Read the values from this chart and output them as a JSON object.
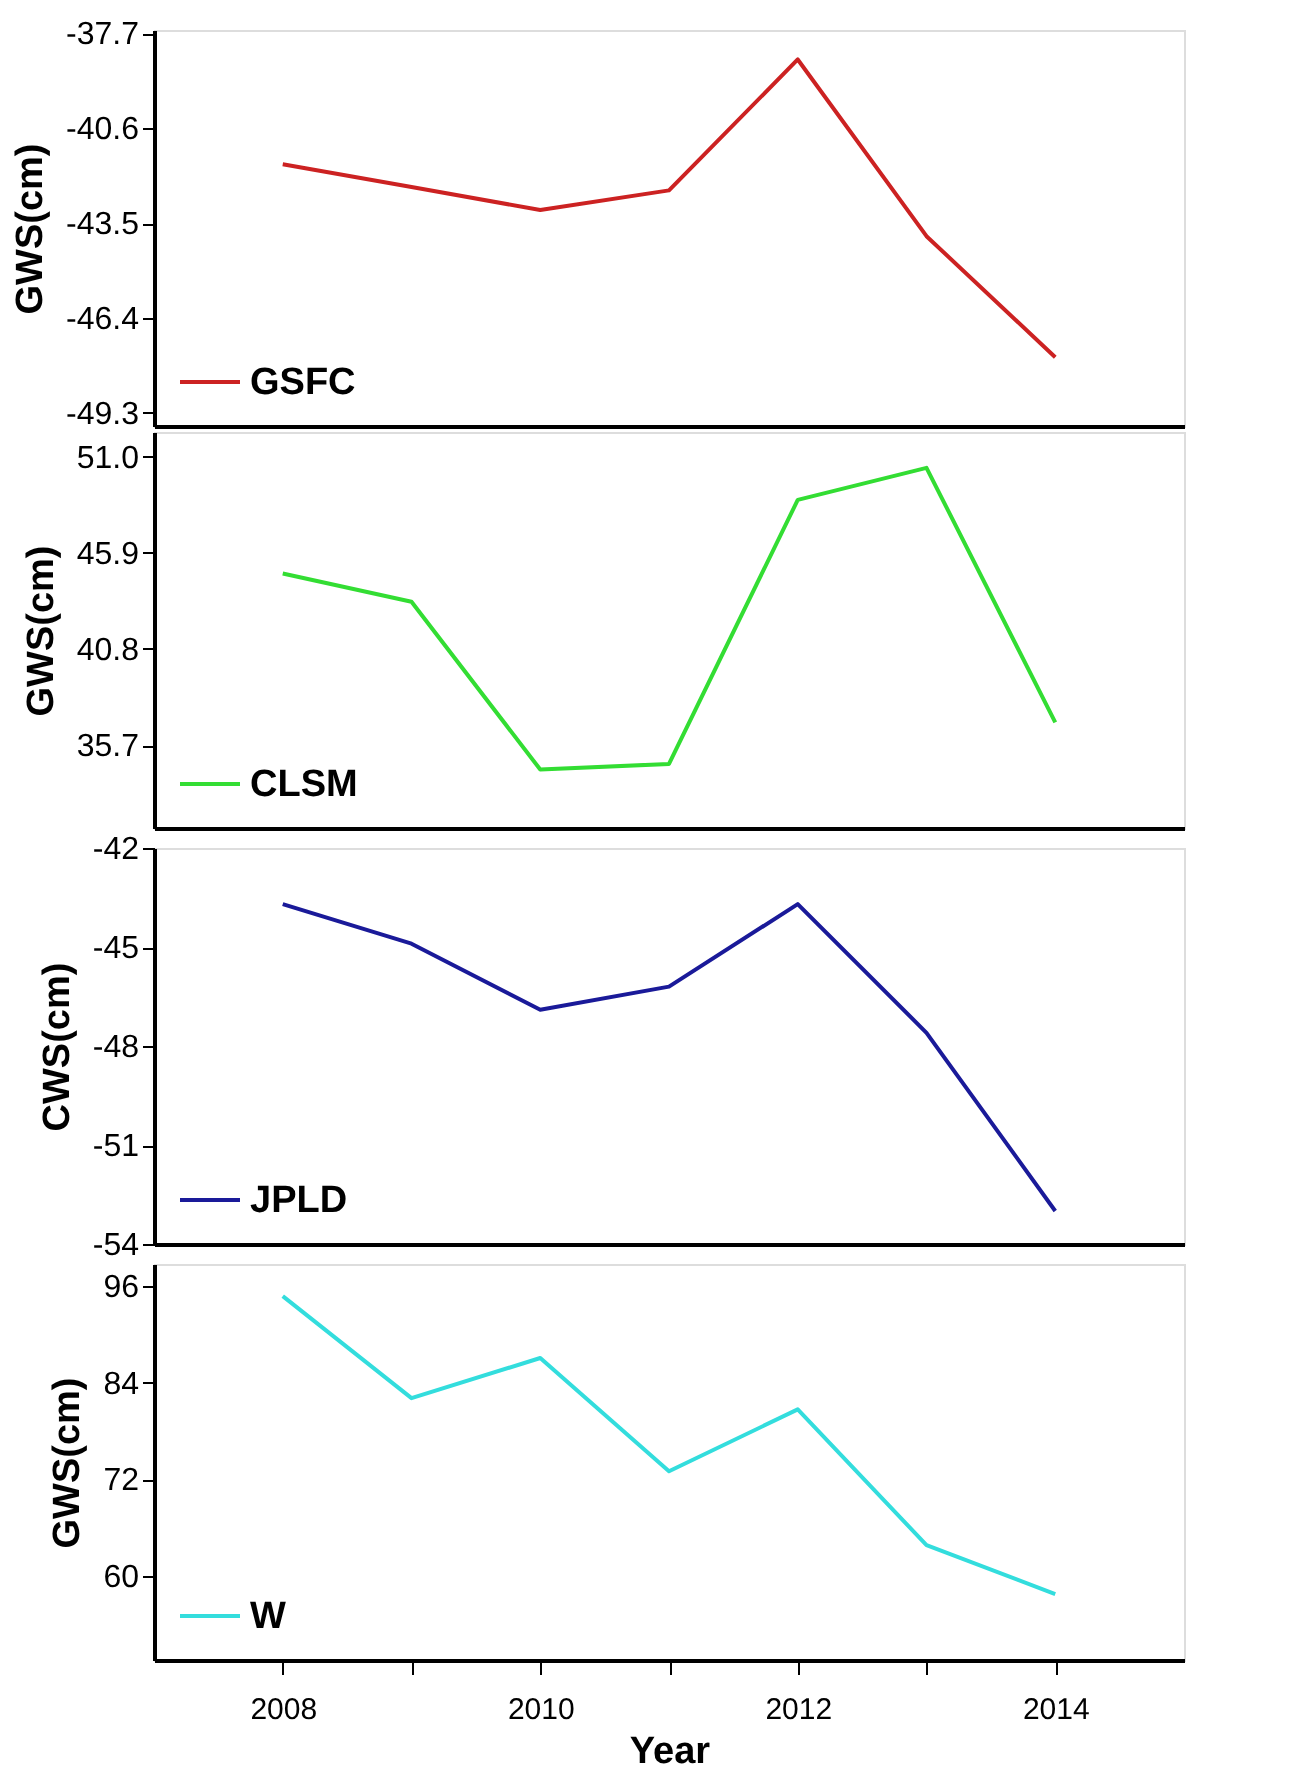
{
  "chart_data": [
    {
      "type": "line",
      "x": [
        2008,
        2009,
        2010,
        2011,
        2012,
        2013,
        2014
      ],
      "ylabel": "GWS(cm)",
      "legend": "bottom left",
      "tick_labels": "y",
      "grid": false,
      "xlim": [
        2007,
        2015
      ],
      "ylim": [
        -49.7,
        -37.6
      ],
      "yticks": [
        -37.7,
        -40.6,
        -43.5,
        -46.4,
        -49.3
      ],
      "series": [
        {
          "name": "GSFC",
          "color": "#cc2222",
          "values": [
            -41.7,
            -42.4,
            -43.1,
            -42.5,
            -38.5,
            -43.9,
            -47.6
          ]
        }
      ]
    },
    {
      "type": "line",
      "x": [
        2008,
        2009,
        2010,
        2011,
        2012,
        2013,
        2014
      ],
      "ylabel": "GWS(cm)",
      "legend": "bottom left",
      "tick_labels": "y",
      "grid": false,
      "xlim": [
        2007,
        2015
      ],
      "ylim": [
        31.3,
        52.3
      ],
      "yticks": [
        {
          "value": 51.0,
          "label": "51.0"
        },
        45.9,
        40.8,
        35.7
      ],
      "series": [
        {
          "name": "CLSM",
          "color": "#33dd33",
          "values": [
            44.8,
            43.3,
            34.4,
            34.7,
            48.7,
            50.4,
            36.9
          ]
        }
      ]
    },
    {
      "type": "line",
      "x": [
        2008,
        2009,
        2010,
        2011,
        2012,
        2013,
        2014
      ],
      "ylabel": "CWS(cm)",
      "legend": "bottom left",
      "tick_labels": "y",
      "grid": false,
      "xlim": [
        2007,
        2015
      ],
      "ylim": [
        -54,
        -42
      ],
      "yticks": [
        -42,
        -45,
        -48,
        -51,
        -54
      ],
      "series": [
        {
          "name": "JPLD",
          "color": "#1a1a99",
          "values": [
            -43.7,
            -44.9,
            -46.9,
            -46.2,
            -43.7,
            -47.6,
            -53.0
          ]
        }
      ]
    },
    {
      "type": "line",
      "x": [
        2008,
        2009,
        2010,
        2011,
        2012,
        2013,
        2014
      ],
      "xlabel": "Year",
      "ylabel": "GWS(cm)",
      "legend": "bottom left",
      "grid": false,
      "xlim": [
        2007,
        2015
      ],
      "xticks": [
        2008,
        {
          "value": 2009,
          "label": null
        },
        2010,
        {
          "value": 2011,
          "label": null
        },
        2012,
        {
          "value": 2013,
          "label": null
        },
        2014
      ],
      "ylim": [
        49.5,
        98.8
      ],
      "yticks": [
        96,
        84,
        72,
        60
      ],
      "series": [
        {
          "name": "W",
          "color": "#33dddd",
          "values": [
            94.8,
            82.1,
            87.1,
            73.0,
            80.7,
            63.8,
            57.7
          ]
        }
      ]
    }
  ]
}
